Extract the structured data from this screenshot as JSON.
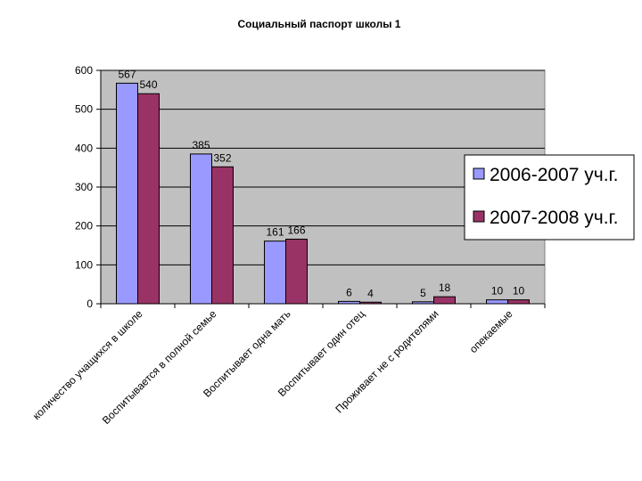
{
  "chart_data": {
    "type": "bar",
    "title": "Социальный паспорт школы 1",
    "xlabel": "",
    "ylabel": "",
    "ylim": [
      0,
      600
    ],
    "yticks": [
      0,
      100,
      200,
      300,
      400,
      500,
      600
    ],
    "grid": true,
    "legend_position": "right",
    "categories": [
      "количество учащихся в школе",
      "Воспитывается в полной семье",
      "Воспитывает одна мать",
      "Воспитывает один отец",
      "Проживает не с родителями",
      "опекаемые"
    ],
    "series": [
      {
        "name": "2006-2007 уч.г.",
        "color": "#9999ff",
        "values": [
          567,
          385,
          161,
          6,
          5,
          10
        ]
      },
      {
        "name": "2007-2008 уч.г.",
        "color": "#993366",
        "values": [
          540,
          352,
          166,
          4,
          18,
          10
        ]
      }
    ],
    "plot_background": "#c0c0c0"
  }
}
